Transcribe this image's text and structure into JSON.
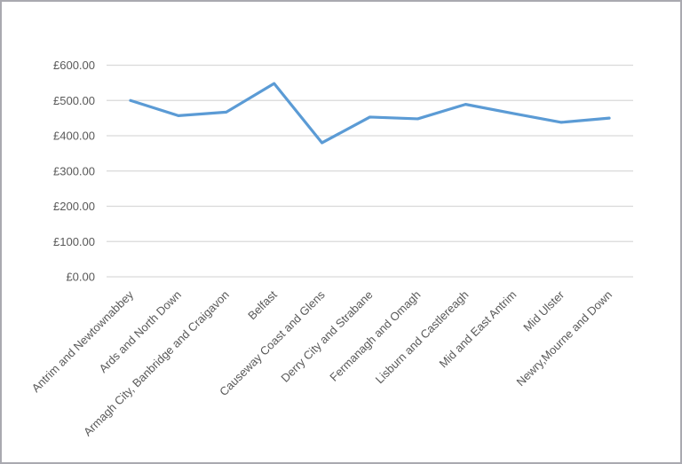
{
  "window": {
    "background": "#ffffff",
    "border_color": "#a9a9b0"
  },
  "chart_data": {
    "type": "line",
    "title": "",
    "xlabel": "",
    "ylabel": "",
    "categories": [
      "Antrim and Newtownabbey",
      "Ards and North Down",
      "Armagh City, Banbridge and Craigavon",
      "Belfast",
      "Causeway Coast and Glens",
      "Derry City and Strabane",
      "Fermanagh and Omagh",
      "Lisburn and Castlereagh",
      "Mid and East Antrim",
      "Mid Ulster",
      "Newry,Mourne and Down"
    ],
    "series": [
      {
        "name": "",
        "values": [
          500,
          457,
          467,
          548,
          380,
          453,
          448,
          489,
          463,
          438,
          450
        ]
      }
    ],
    "y_ticks": [
      0,
      100,
      200,
      300,
      400,
      500,
      600
    ],
    "y_tick_labels": [
      "£0.00",
      "£100.00",
      "£200.00",
      "£300.00",
      "£400.00",
      "£500.00",
      "£600.00"
    ],
    "ylim": [
      0,
      600
    ],
    "grid": true,
    "legend_position": "none",
    "line_color": "#5B9BD5",
    "gridline_color": "#D9D9D9",
    "axis_label_color": "#595959"
  }
}
